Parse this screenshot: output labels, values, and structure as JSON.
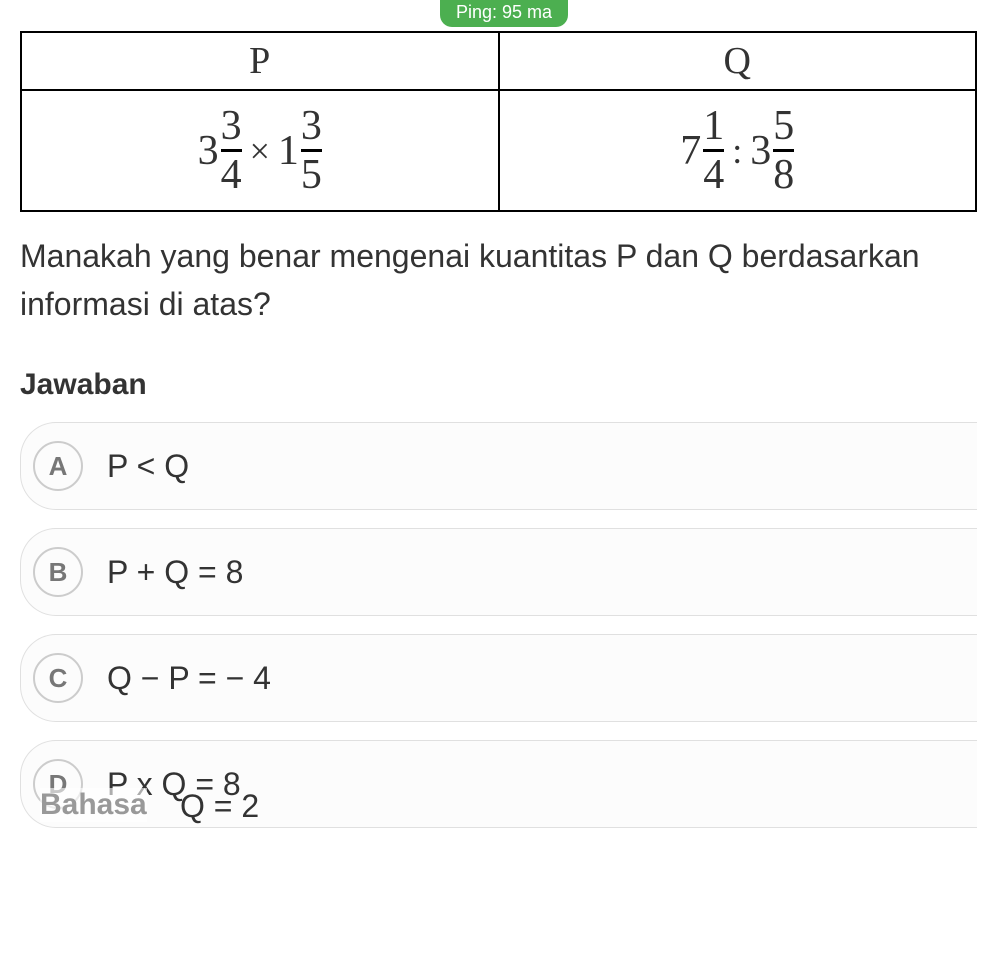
{
  "ping": {
    "label": "Ping: 95 ma",
    "bg_color": "#4caf50",
    "text_color": "#ffffff"
  },
  "table": {
    "border_color": "#000000",
    "headers": {
      "p": "P",
      "q": "Q"
    },
    "p_expr": {
      "mixed1": {
        "whole": "3",
        "num": "3",
        "den": "4"
      },
      "op": "×",
      "mixed2": {
        "whole": "1",
        "num": "3",
        "den": "5"
      }
    },
    "q_expr": {
      "mixed1": {
        "whole": "7",
        "num": "1",
        "den": "4"
      },
      "op": ":",
      "mixed2": {
        "whole": "3",
        "num": "5",
        "den": "8"
      }
    }
  },
  "question": "Manakah yang benar mengenai kuantitas P dan Q berdasarkan informasi di atas?",
  "answer_heading": "Jawaban",
  "options": [
    {
      "letter": "A",
      "text": "P < Q"
    },
    {
      "letter": "B",
      "text": "P + Q = 8"
    },
    {
      "letter": "C",
      "text": "Q − P = − 4"
    },
    {
      "letter": "D",
      "text": "P x Q = 8"
    }
  ],
  "overlay": {
    "bahasa": "Bahasa",
    "e_text": "Q = 2",
    "e_combined": "P : Q = 2"
  },
  "styles": {
    "body_bg": "#ffffff",
    "text_color": "#333333",
    "option_border": "#e0e0e0",
    "option_letter_border": "#cccccc",
    "option_letter_color": "#777777",
    "question_fontsize": 32,
    "header_fontsize": 38,
    "fraction_fontsize": 42
  }
}
